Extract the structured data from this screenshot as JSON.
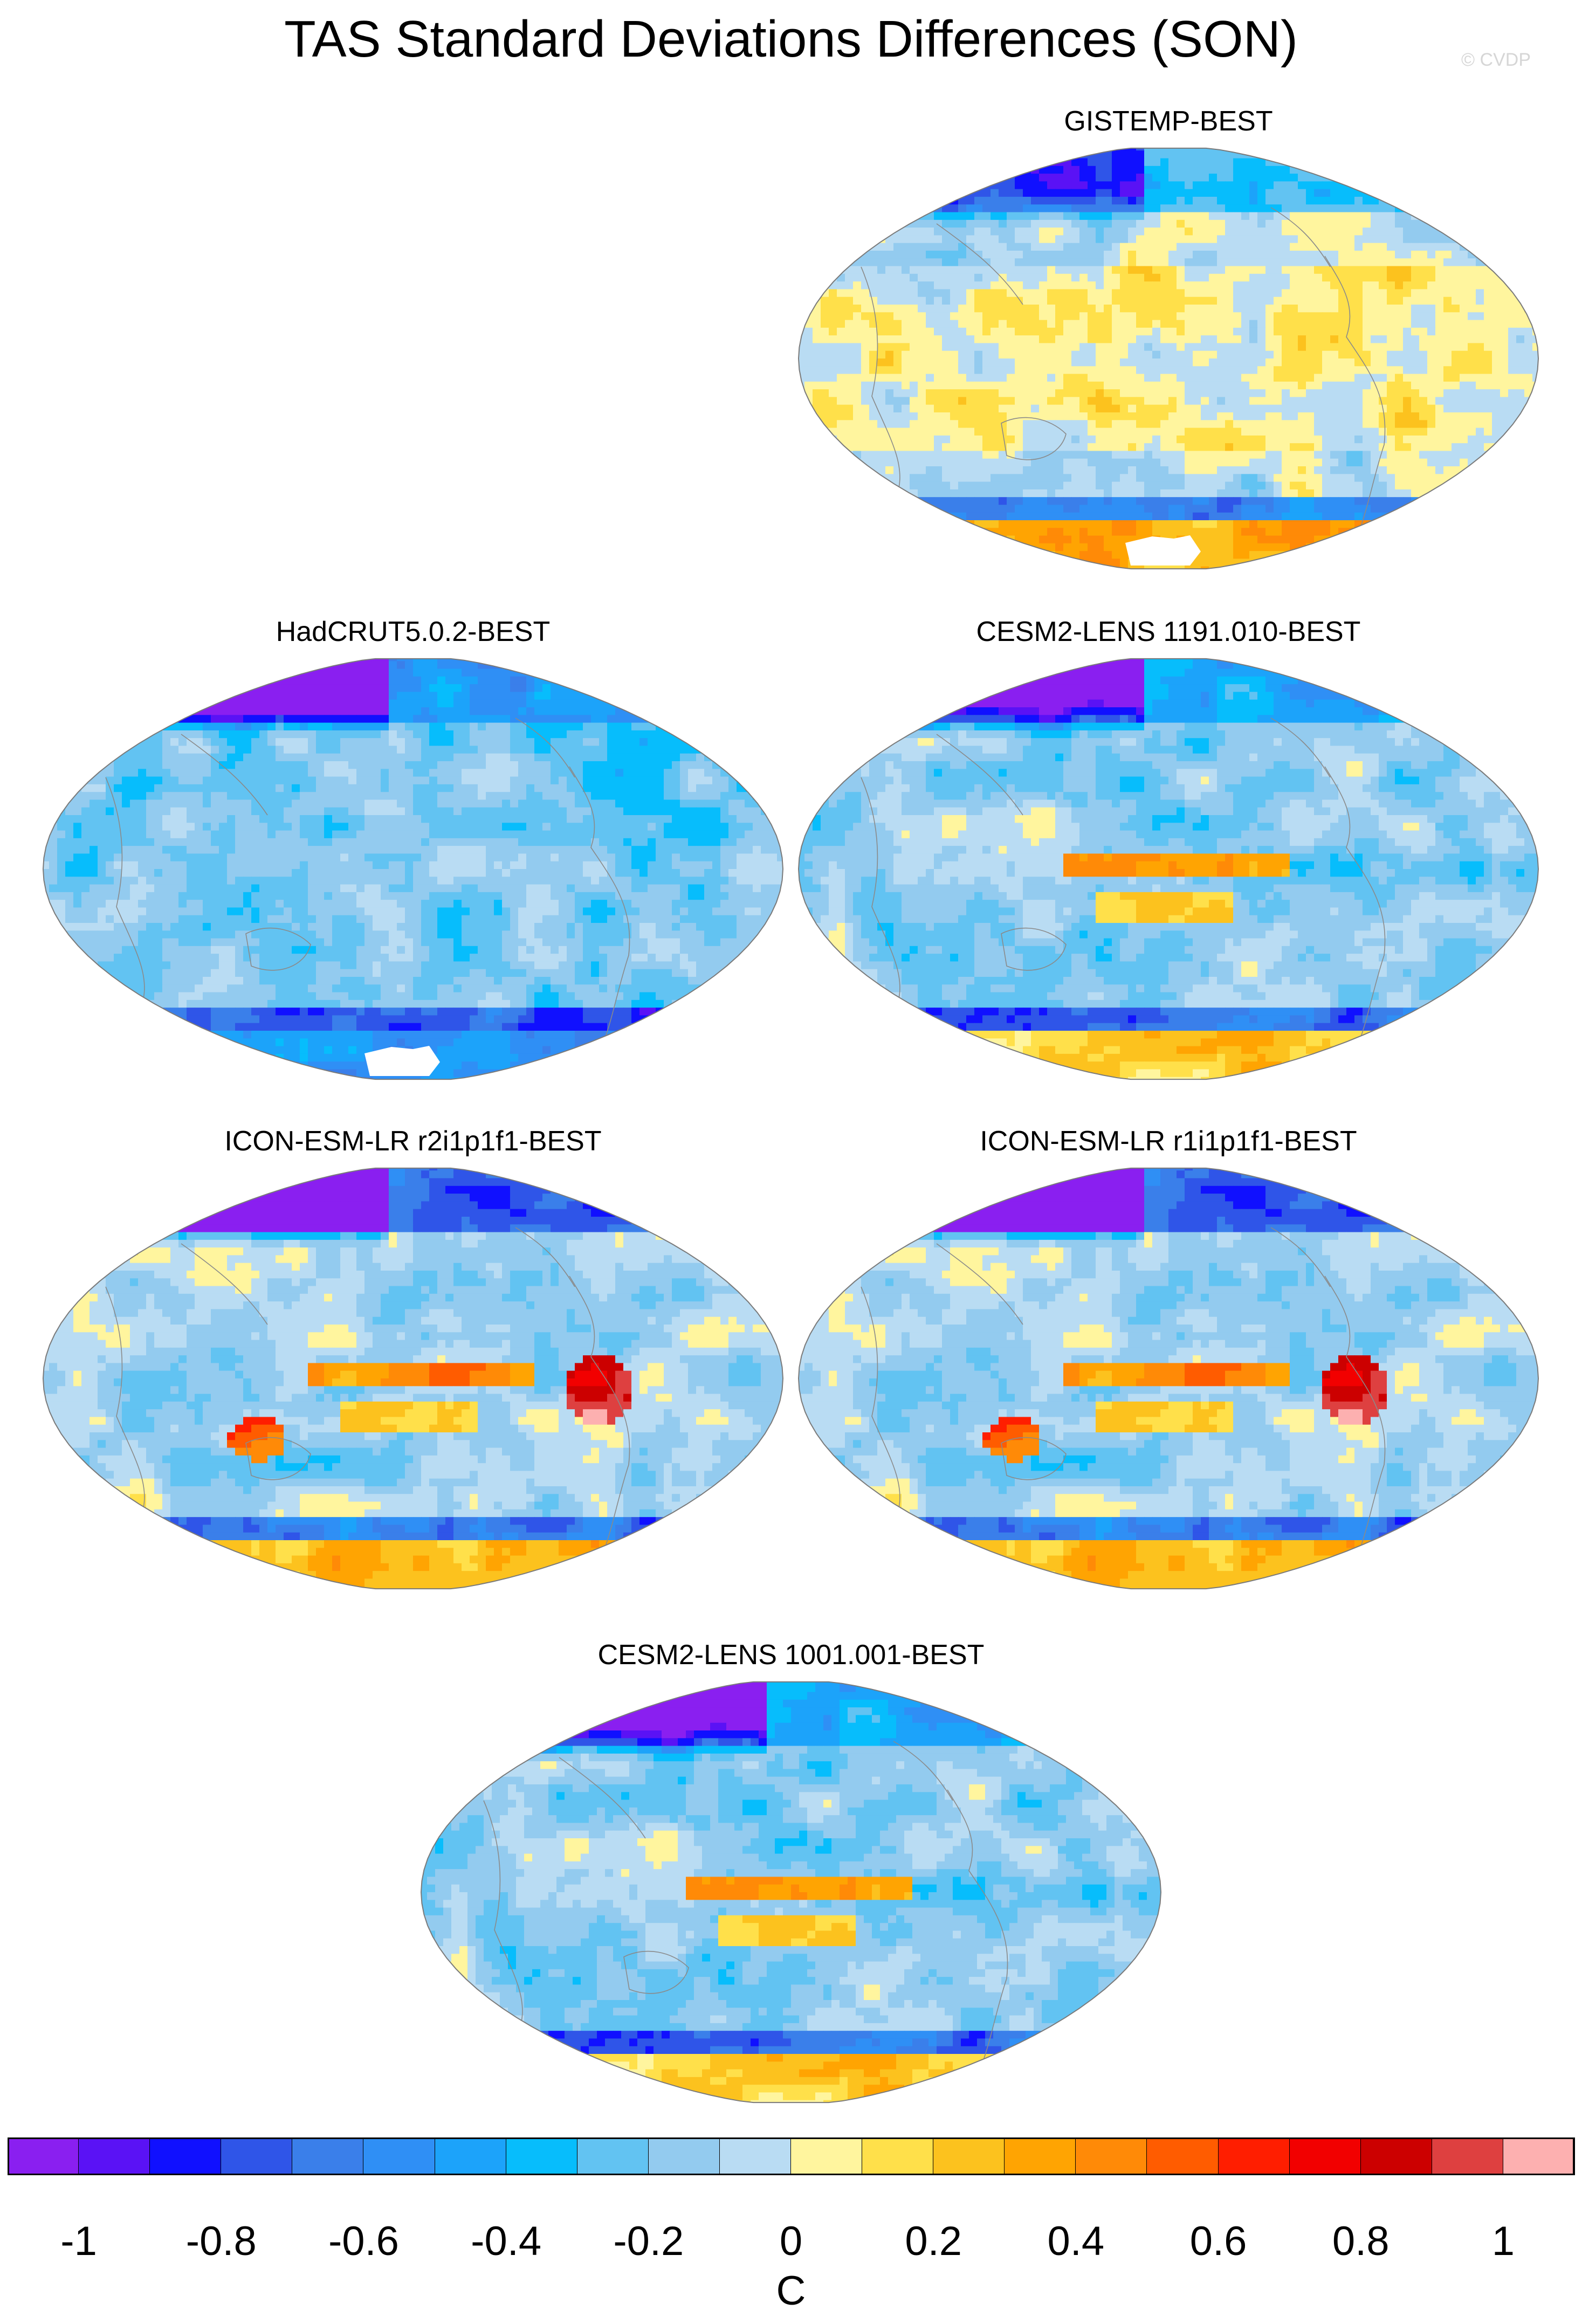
{
  "title": "TAS Standard Deviations Differences (SON)",
  "copyright": "© CVDP",
  "panels": [
    {
      "id": "gistemp",
      "title": "GISTEMP-BEST",
      "bias": -0.05,
      "pattern": "obs"
    },
    {
      "id": "hadcrut",
      "title": "HadCRUT5.0.2-BEST",
      "bias": -0.2,
      "pattern": "obs_cool"
    },
    {
      "id": "cesm1191",
      "title": "CESM2-LENS 1191.010-BEST",
      "bias": -0.15,
      "pattern": "model"
    },
    {
      "id": "icon_r2",
      "title": "ICON-ESM-LR r2i1p1f1-BEST",
      "bias": -0.1,
      "pattern": "icon"
    },
    {
      "id": "icon_r1",
      "title": "ICON-ESM-LR r1i1p1f1-BEST",
      "bias": -0.1,
      "pattern": "icon"
    },
    {
      "id": "cesm1001",
      "title": "CESM2-LENS 1001.001-BEST",
      "bias": -0.15,
      "pattern": "model"
    }
  ],
  "colorbar": {
    "unit": "C",
    "tick_labels": [
      "-1",
      "-0.8",
      "-0.6",
      "-0.4",
      "-0.2",
      "0",
      "0.2",
      "0.4",
      "0.6",
      "0.8",
      "1"
    ],
    "levels": [
      -1.1,
      -1.0,
      -0.9,
      -0.8,
      -0.7,
      -0.6,
      -0.5,
      -0.4,
      -0.3,
      -0.2,
      -0.1,
      0.0,
      0.1,
      0.2,
      0.3,
      0.4,
      0.5,
      0.6,
      0.7,
      0.8,
      0.9,
      1.0,
      1.1
    ],
    "colors": [
      "#8a1ff0",
      "#5a12f5",
      "#1010ff",
      "#2f55e8",
      "#3a7fea",
      "#2f8ff5",
      "#1ca3fa",
      "#07bdfc",
      "#62c3f2",
      "#93cbef",
      "#b9dcf3",
      "#fff59e",
      "#ffe04a",
      "#fcc21e",
      "#ffa402",
      "#ff8a07",
      "#ff5c00",
      "#ff1e00",
      "#f20000",
      "#cc0000",
      "#de4040",
      "#fdb0b0"
    ]
  }
}
